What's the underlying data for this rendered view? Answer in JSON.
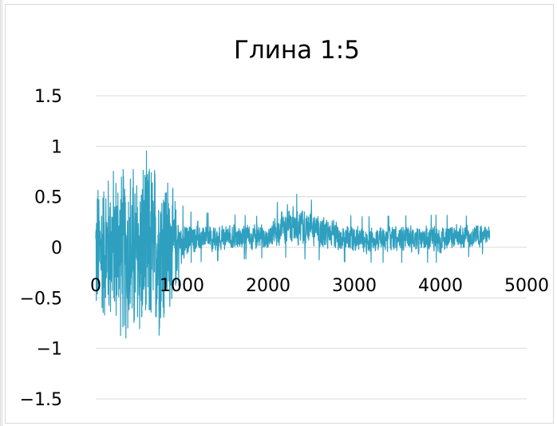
{
  "chart_data": {
    "type": "line",
    "title": "Глина 1:5",
    "xlabel": "",
    "ylabel": "",
    "xlim": [
      0,
      5000
    ],
    "ylim": [
      -1.5,
      1.5
    ],
    "x_ticks": [
      "0",
      "1000",
      "2000",
      "3000",
      "4000",
      "5000"
    ],
    "y_ticks": [
      "1.5",
      "1",
      "0.5",
      "0",
      "−0.5",
      "−1",
      "−1.5"
    ],
    "grid": "horizontal",
    "legend": "none",
    "series": [
      {
        "color": "#2e9fbf",
        "x_start": 0,
        "x_end": 4570,
        "points": 2300,
        "envelope": [
          {
            "x": 0,
            "min": -0.83,
            "max": 0.72
          },
          {
            "x": 200,
            "min": -0.85,
            "max": 0.9
          },
          {
            "x": 400,
            "min": -1.1,
            "max": 0.95
          },
          {
            "x": 600,
            "min": -1.05,
            "max": 1.0
          },
          {
            "x": 800,
            "min": -0.95,
            "max": 0.95
          },
          {
            "x": 950,
            "min": -0.4,
            "max": 0.45
          },
          {
            "x": 1100,
            "min": -0.15,
            "max": 0.35
          },
          {
            "x": 2000,
            "min": -0.1,
            "max": 0.3
          },
          {
            "x": 2200,
            "min": -0.1,
            "max": 0.57
          },
          {
            "x": 3000,
            "min": -0.15,
            "max": 0.3
          },
          {
            "x": 4000,
            "min": -0.15,
            "max": 0.32
          },
          {
            "x": 4570,
            "min": -0.05,
            "max": 0.3
          }
        ]
      }
    ]
  }
}
